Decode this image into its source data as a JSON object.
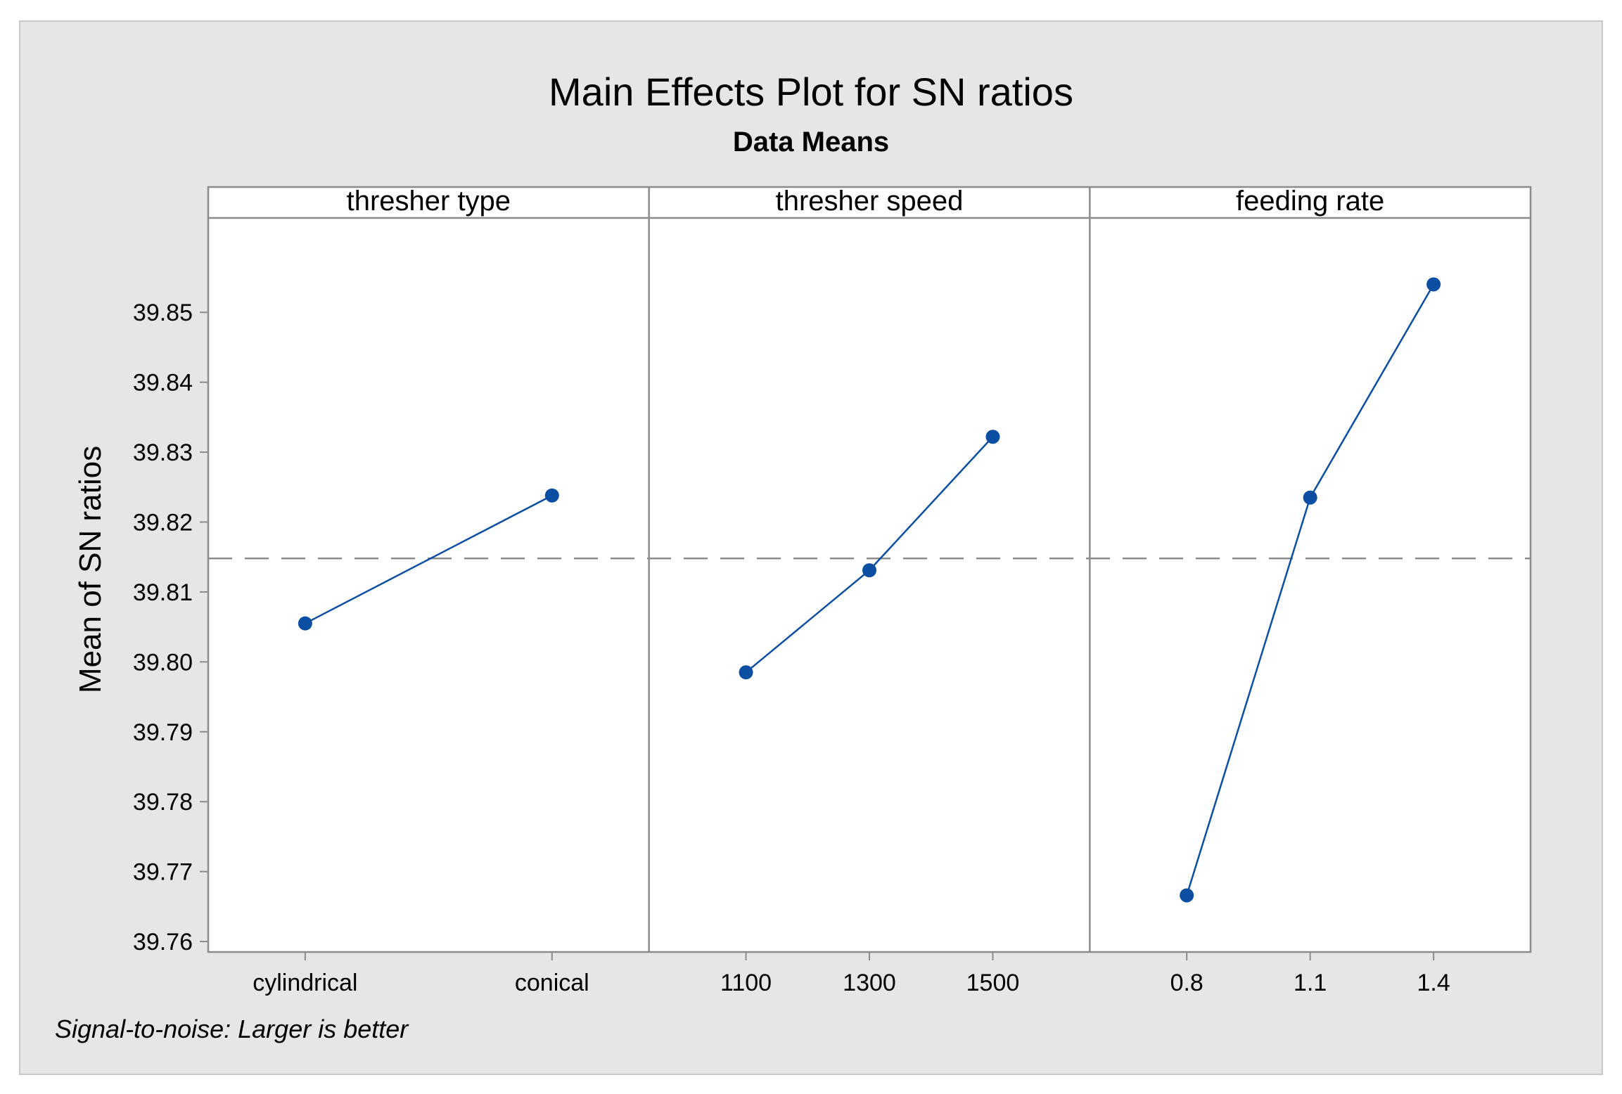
{
  "chart_data": {
    "type": "line",
    "title": "Main Effects Plot for SN ratios",
    "subtitle": "Data Means",
    "ylabel": "Mean of SN ratios",
    "ylim": [
      39.7585,
      39.8635
    ],
    "yticks": [
      "39.76",
      "39.77",
      "39.78",
      "39.79",
      "39.80",
      "39.81",
      "39.82",
      "39.83",
      "39.84",
      "39.85"
    ],
    "overall_mean": 39.8148,
    "footnote": "Signal-to-noise: Larger is better",
    "colors": {
      "series": "#0b4ea2",
      "background": "#e6e6e6",
      "panel_bg": "#ffffff",
      "mean_line": "#8c8c8c",
      "axis": "#8c8c8c"
    },
    "panels": [
      {
        "factor": "thresher type",
        "levels": [
          "cylindrical",
          "conical"
        ],
        "values": [
          39.8055,
          39.8238
        ]
      },
      {
        "factor": "thresher speed",
        "levels": [
          "1100",
          "1300",
          "1500"
        ],
        "values": [
          39.7985,
          39.8131,
          39.8322
        ]
      },
      {
        "factor": "feeding rate",
        "levels": [
          "0.8",
          "1.1",
          "1.4"
        ],
        "values": [
          39.7666,
          39.8235,
          39.854
        ]
      }
    ]
  }
}
